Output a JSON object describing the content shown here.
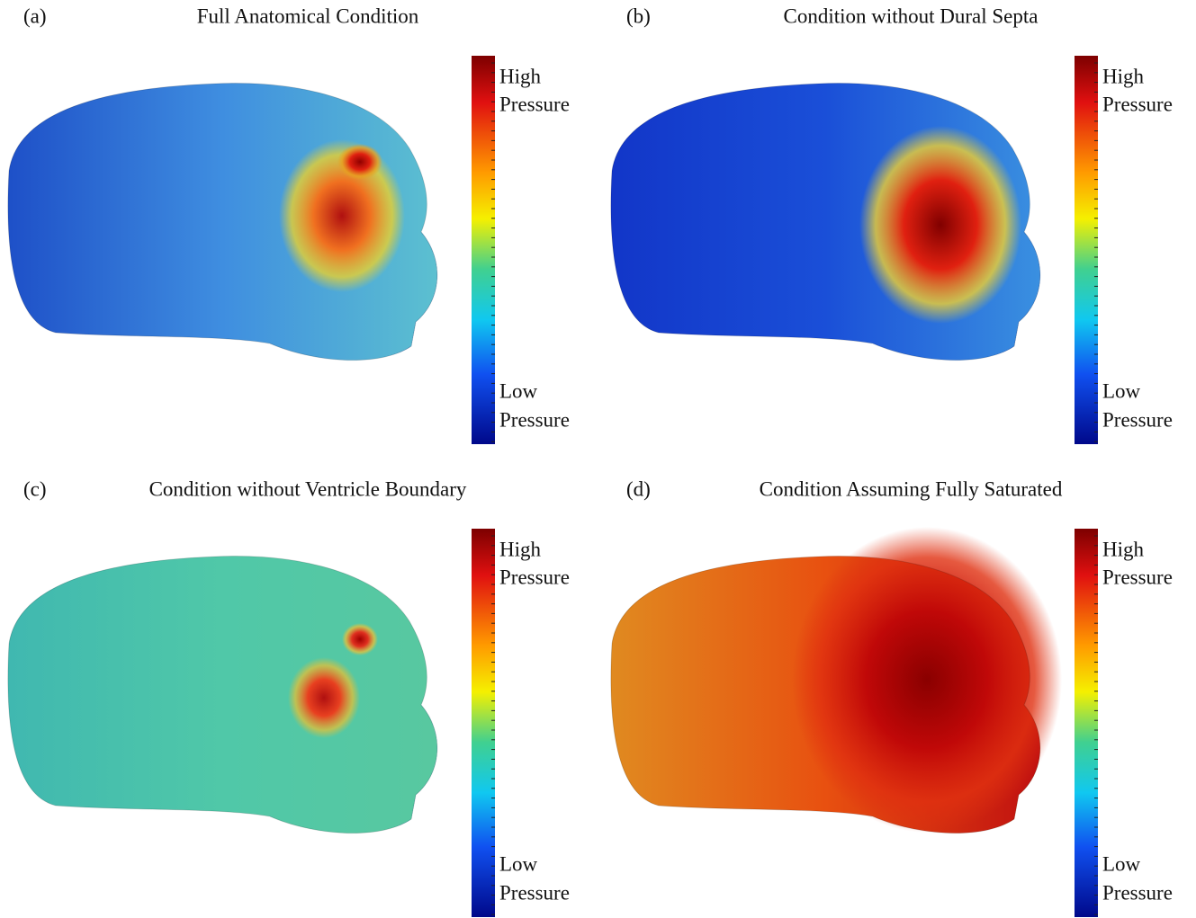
{
  "panels": [
    {
      "label": "(a)",
      "title": "Full Anatomical Condition",
      "colorbar": {
        "high": [
          "High",
          "Pressure"
        ],
        "low": [
          "Low",
          "Pressure"
        ]
      }
    },
    {
      "label": "(b)",
      "title": "Condition without Dural Septa",
      "colorbar": {
        "high": [
          "High",
          "Pressure"
        ],
        "low": [
          "Low",
          "Pressure"
        ]
      }
    },
    {
      "label": "(c)",
      "title": "Condition without Ventricle Boundary",
      "colorbar": {
        "high": [
          "High",
          "Pressure"
        ],
        "low": [
          "Low",
          "Pressure"
        ]
      }
    },
    {
      "label": "(d)",
      "title": "Condition Assuming Fully Saturated",
      "colorbar": {
        "high": [
          "High",
          "Pressure"
        ],
        "low": [
          "Low",
          "Pressure"
        ]
      }
    }
  ]
}
